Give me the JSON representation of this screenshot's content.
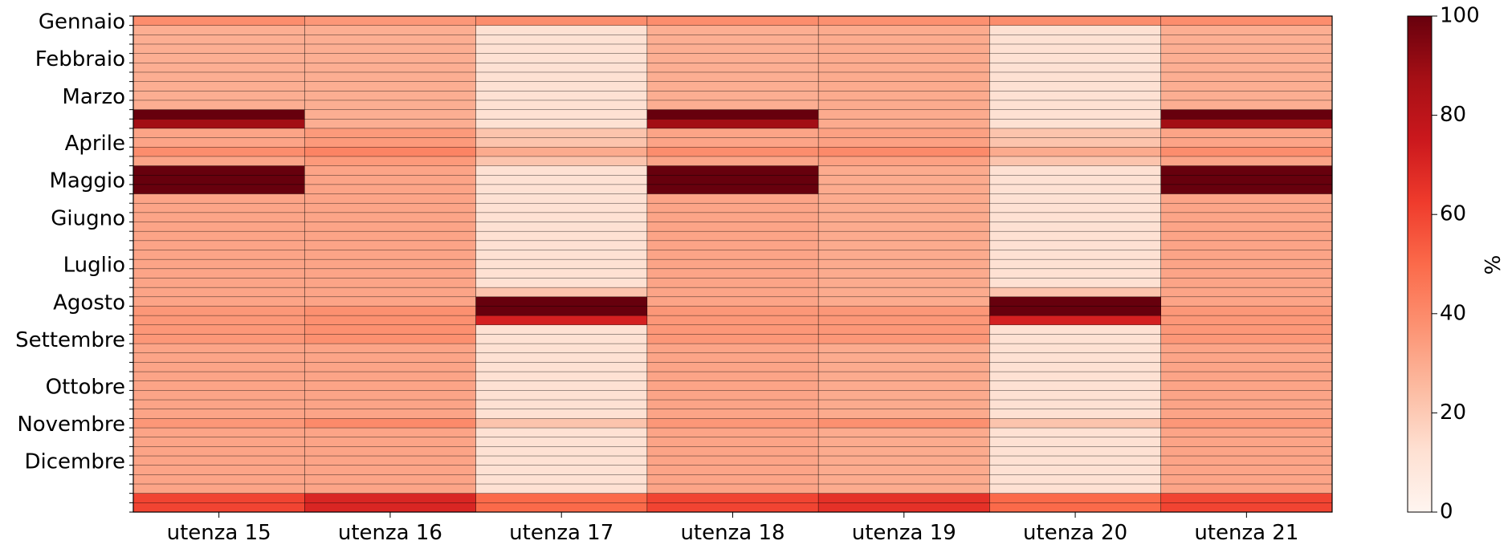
{
  "chart_data": {
    "type": "heatmap",
    "title": "",
    "xlabel": "",
    "ylabel": "",
    "columns": [
      "utenza 15",
      "utenza 16",
      "utenza 17",
      "utenza 18",
      "utenza 19",
      "utenza 20",
      "utenza 21"
    ],
    "month_labels": [
      "Gennaio",
      "Febbraio",
      "Marzo",
      "Aprile",
      "Maggio",
      "Giugno",
      "Luglio",
      "Agosto",
      "Settembre",
      "Ottobre",
      "Novembre",
      "Dicembre"
    ],
    "month_start_week": [
      0,
      4,
      8,
      13,
      17,
      21,
      26,
      30,
      34,
      39,
      43,
      47
    ],
    "week_count": 53,
    "colormap": "Reds",
    "colormap_stops": [
      "#fff5f0",
      "#fee0d2",
      "#fcbba1",
      "#fc9272",
      "#fb6a4a",
      "#ef3b2c",
      "#cb181d",
      "#a50f15",
      "#67000d"
    ],
    "zmin": 0,
    "zmax": 100,
    "colorbar": {
      "label": "%",
      "ticks": [
        0,
        20,
        40,
        60,
        80,
        100
      ]
    },
    "patterns": {
      "A": [
        39,
        29,
        29,
        29,
        29,
        29,
        29,
        29,
        29,
        29,
        100,
        88,
        32,
        32,
        39,
        32,
        100,
        100,
        100,
        32,
        32,
        32,
        32,
        32,
        32,
        32,
        32,
        32,
        32,
        32,
        32,
        36,
        36,
        36,
        36,
        32,
        32,
        32,
        32,
        32,
        32,
        32,
        32,
        36,
        32,
        32,
        32,
        32,
        32,
        32,
        32,
        60,
        60
      ],
      "B": [
        36,
        29,
        29,
        29,
        29,
        29,
        29,
        29,
        29,
        29,
        29,
        29,
        35,
        35,
        42,
        35,
        32,
        32,
        32,
        32,
        32,
        32,
        32,
        32,
        32,
        32,
        32,
        32,
        32,
        32,
        32,
        38,
        38,
        38,
        38,
        32,
        32,
        32,
        32,
        32,
        32,
        32,
        32,
        40,
        32,
        32,
        32,
        32,
        32,
        32,
        32,
        70,
        70
      ],
      "C": [
        39,
        12,
        12,
        12,
        12,
        12,
        12,
        12,
        12,
        12,
        12,
        12,
        22,
        22,
        30,
        22,
        12,
        12,
        12,
        12,
        12,
        12,
        12,
        12,
        12,
        12,
        12,
        12,
        12,
        22,
        100,
        100,
        72,
        12,
        12,
        12,
        12,
        12,
        12,
        12,
        12,
        12,
        12,
        22,
        12,
        12,
        12,
        12,
        12,
        12,
        12,
        50,
        50
      ],
      "D": [
        38,
        30,
        30,
        30,
        30,
        30,
        30,
        30,
        30,
        30,
        30,
        30,
        33,
        33,
        40,
        33,
        30,
        30,
        30,
        30,
        30,
        30,
        30,
        30,
        30,
        30,
        30,
        30,
        30,
        30,
        30,
        36,
        36,
        36,
        36,
        30,
        30,
        30,
        30,
        30,
        30,
        30,
        30,
        38,
        30,
        30,
        30,
        30,
        30,
        30,
        30,
        66,
        66
      ]
    },
    "column_patterns": [
      "A",
      "B",
      "C",
      "A",
      "D",
      "C",
      "A"
    ]
  }
}
